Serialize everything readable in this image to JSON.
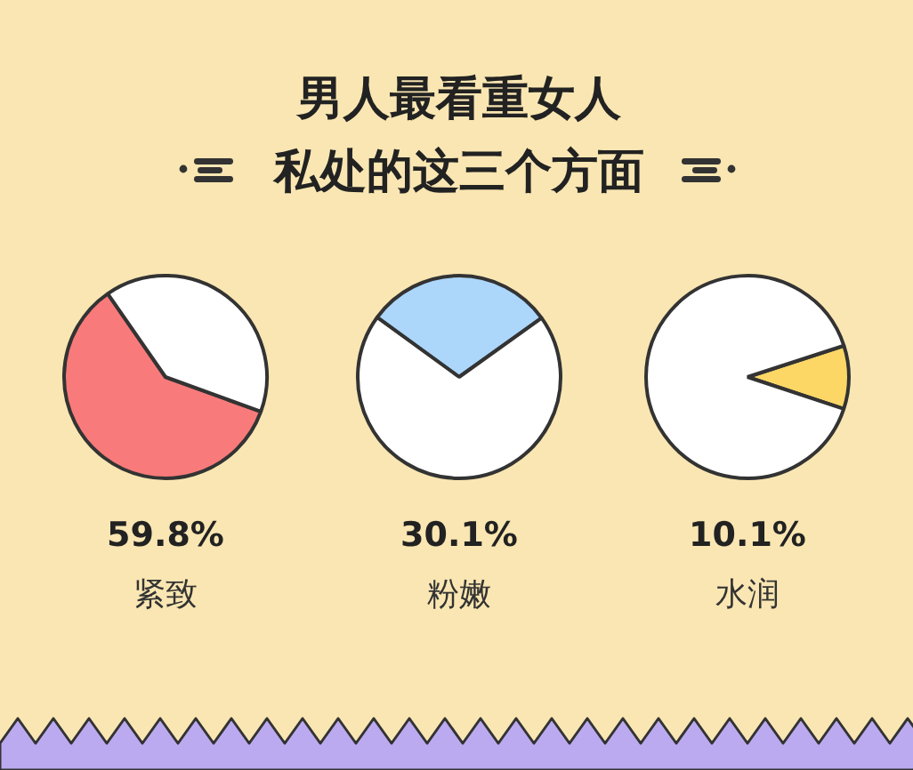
{
  "chart_data": [
    {
      "type": "pie",
      "categories": [
        null,
        null
      ],
      "values": [
        59.8,
        40.2
      ],
      "colors": [
        "#f87a7a",
        "#ffffff"
      ],
      "annotations": [
        "59.8%",
        "紧致"
      ]
    },
    {
      "type": "pie",
      "title": "男人最看重女人",
      "subtitle": "私处的这三个方面",
      "categories": [
        null,
        null
      ],
      "values": [
        30.1,
        69.9
      ],
      "colors": [
        "#acd6fa",
        "#ffffff"
      ],
      "annotations": [
        "30.1%",
        "粉嫩"
      ]
    },
    {
      "type": "pie",
      "categories": [
        null,
        null
      ],
      "values": [
        10.1,
        89.9
      ],
      "colors": [
        "#fdd766",
        "#ffffff"
      ],
      "annotations": [
        "10.1%",
        "水润"
      ]
    }
  ]
}
